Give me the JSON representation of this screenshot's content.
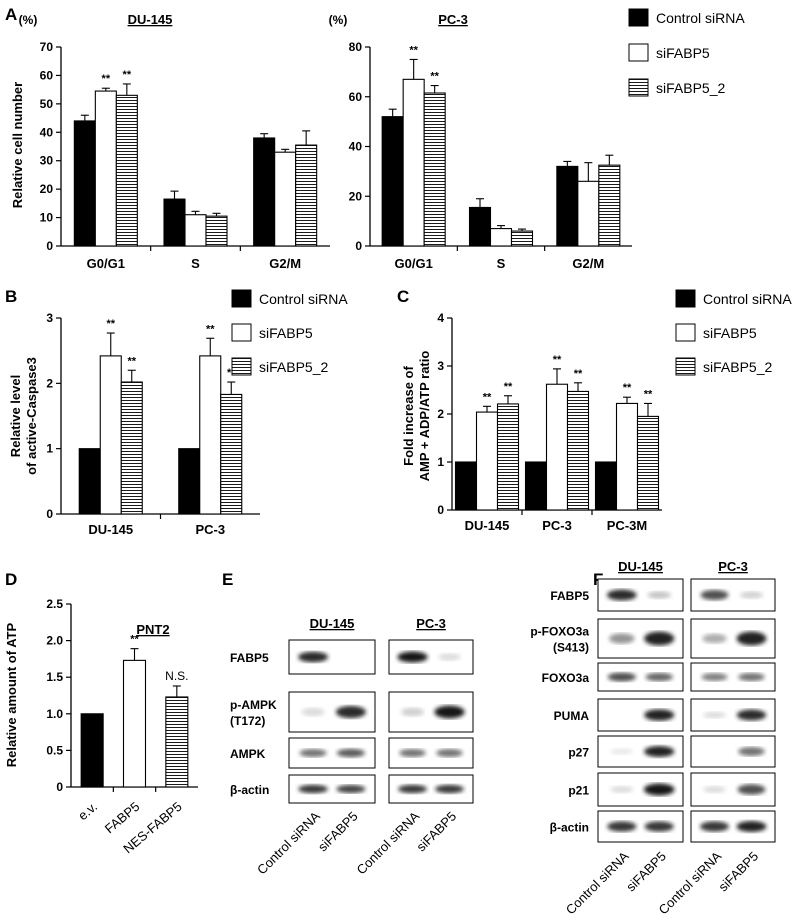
{
  "figure": {
    "colors": {
      "control": "#000000",
      "fabp5": "#ffffff",
      "fabp5_2": "#ffffff",
      "axis": "#000000"
    },
    "legend": [
      "Control siRNA",
      "siFABP5",
      "siFABP5_2"
    ]
  },
  "chart_data": [
    {
      "panel": "A",
      "type": "bar",
      "title": "DU-145",
      "unit": "(%)",
      "ylabel": "Relative cell number",
      "ylim": [
        0,
        70
      ],
      "yticks": [
        "0",
        "10",
        "20",
        "30",
        "40",
        "50",
        "60",
        "70"
      ],
      "categories": [
        "G0/G1",
        "S",
        "G2/M"
      ],
      "series": [
        {
          "name": "Control siRNA",
          "values": [
            44,
            16.5,
            38
          ],
          "errors": [
            2,
            2.8,
            1.5
          ],
          "marks": [
            "",
            "",
            ""
          ]
        },
        {
          "name": "siFABP5",
          "values": [
            54.5,
            11,
            33
          ],
          "errors": [
            1,
            1.2,
            1
          ],
          "marks": [
            "**",
            "",
            ""
          ]
        },
        {
          "name": "siFABP5_2",
          "values": [
            53,
            10.5,
            35.5
          ],
          "errors": [
            4,
            1,
            5
          ],
          "marks": [
            "**",
            "",
            ""
          ]
        }
      ]
    },
    {
      "panel": "",
      "type": "bar",
      "title": "PC-3",
      "unit": "(%)",
      "ylabel": "",
      "ylim": [
        0,
        80
      ],
      "yticks": [
        "0",
        "20",
        "40",
        "60",
        "80"
      ],
      "categories": [
        "G0/G1",
        "S",
        "G2/M"
      ],
      "series": [
        {
          "name": "Control siRNA",
          "values": [
            52,
            15.5,
            32
          ],
          "errors": [
            3,
            3.5,
            2
          ],
          "marks": [
            "",
            "",
            ""
          ]
        },
        {
          "name": "siFABP5",
          "values": [
            67,
            7,
            26
          ],
          "errors": [
            8,
            1.2,
            7.5
          ],
          "marks": [
            "**",
            "",
            ""
          ]
        },
        {
          "name": "siFABP5_2",
          "values": [
            61.5,
            6,
            32.5
          ],
          "errors": [
            3,
            0.8,
            4
          ],
          "marks": [
            "**",
            "",
            ""
          ]
        }
      ]
    },
    {
      "panel": "B",
      "type": "bar",
      "title": "",
      "unit": "",
      "ylabel": "Relative level of active-Caspase3",
      "ylim": [
        0,
        3
      ],
      "yticks": [
        "0",
        "1",
        "2",
        "3"
      ],
      "categories": [
        "DU-145",
        "PC-3"
      ],
      "series": [
        {
          "name": "Control siRNA",
          "values": [
            1,
            1
          ],
          "errors": [
            0,
            0
          ],
          "marks": [
            "",
            ""
          ]
        },
        {
          "name": "siFABP5",
          "values": [
            2.42,
            2.42
          ],
          "errors": [
            0.35,
            0.27
          ],
          "marks": [
            "**",
            "**"
          ]
        },
        {
          "name": "siFABP5_2",
          "values": [
            2.02,
            1.83
          ],
          "errors": [
            0.18,
            0.19
          ],
          "marks": [
            "**",
            "**"
          ]
        }
      ]
    },
    {
      "panel": "C",
      "type": "bar",
      "title": "",
      "unit": "",
      "ylabel": "Fold increase of AMP + ADP/ATP ratio",
      "ylim": [
        0,
        4
      ],
      "yticks": [
        "0",
        "1",
        "2",
        "3",
        "4"
      ],
      "categories": [
        "DU-145",
        "PC-3",
        "PC-3M"
      ],
      "series": [
        {
          "name": "Control siRNA",
          "values": [
            1,
            1,
            1
          ],
          "errors": [
            0,
            0,
            0
          ],
          "marks": [
            "",
            "",
            ""
          ]
        },
        {
          "name": "siFABP5",
          "values": [
            2.04,
            2.62,
            2.22
          ],
          "errors": [
            0.12,
            0.32,
            0.13
          ],
          "marks": [
            "**",
            "**",
            "**"
          ]
        },
        {
          "name": "siFABP5_2",
          "values": [
            2.21,
            2.47,
            1.95
          ],
          "errors": [
            0.17,
            0.18,
            0.27
          ],
          "marks": [
            "**",
            "**",
            "**"
          ]
        }
      ]
    },
    {
      "panel": "D",
      "type": "bar",
      "title": "PNT2",
      "unit": "",
      "ylabel": "Relative amount of ATP",
      "ylim": [
        0,
        2.5
      ],
      "yticks": [
        "0",
        "0.5",
        "1.0",
        "1.5",
        "2.0",
        "2.5"
      ],
      "categories": [
        "e.v.",
        "FABP5",
        "NES-FABP5"
      ],
      "series": [
        {
          "name": "",
          "values": [
            1,
            1.73,
            1.23
          ],
          "errors": [
            0,
            0.16,
            0.15
          ],
          "marks": [
            "",
            "**",
            "N.S."
          ],
          "fills": [
            "black",
            "white",
            "hatch"
          ]
        }
      ]
    }
  ],
  "panel_e": {
    "label": "E",
    "cells": [
      "DU-145",
      "PC-3"
    ],
    "rows": [
      "FABP5",
      "p-AMPK\n(T172)",
      "AMPK",
      "β-actin"
    ],
    "lanes": [
      "Control siRNA",
      "siFABP5",
      "Control siRNA",
      "siFABP5"
    ]
  },
  "panel_f": {
    "label": "F",
    "cells": [
      "DU-145",
      "PC-3"
    ],
    "rows": [
      "FABP5",
      "p-FOXO3a\n(S413)",
      "FOXO3a",
      "PUMA",
      "p27",
      "p21",
      "β-actin"
    ],
    "lanes": [
      "Control siRNA",
      "siFABP5",
      "Control siRNA",
      "siFABP5"
    ]
  }
}
